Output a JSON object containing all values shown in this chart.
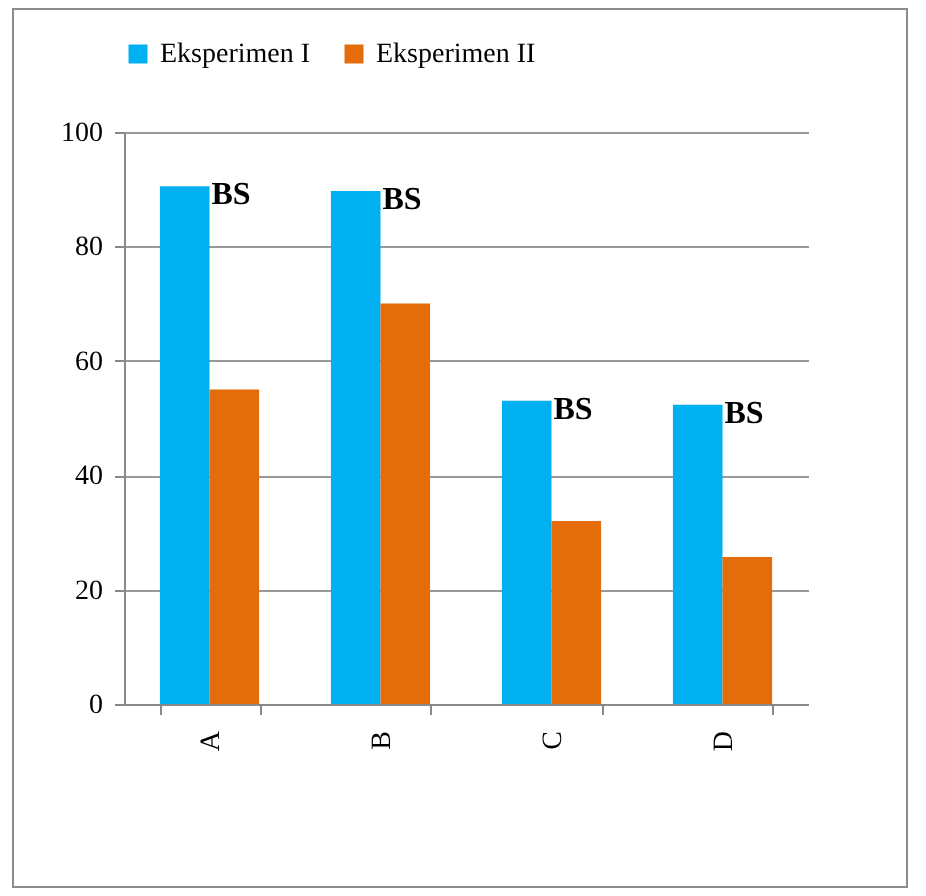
{
  "chart_data": {
    "type": "bar",
    "categories": [
      "A",
      "B",
      "C",
      "D"
    ],
    "series": [
      {
        "name": "Eksperimen I",
        "color": "#00b0f0",
        "values": [
          90.5,
          89.7,
          53,
          52.3
        ]
      },
      {
        "name": "Eksperimen II",
        "color": "#e46c0a",
        "values": [
          55,
          70,
          32,
          25.7
        ]
      }
    ],
    "ylim": [
      0,
      100
    ],
    "yticks": [
      0,
      20,
      40,
      60,
      80,
      100
    ],
    "grid": "y",
    "legend": "top",
    "annotations": [
      {
        "text": "BS",
        "x": "A",
        "y": 90.5
      },
      {
        "text": "BS",
        "x": "B",
        "y": 89.7
      },
      {
        "text": "BS",
        "x": "C",
        "y": 53
      },
      {
        "text": "BS",
        "x": "D",
        "y": 52.3
      }
    ]
  }
}
